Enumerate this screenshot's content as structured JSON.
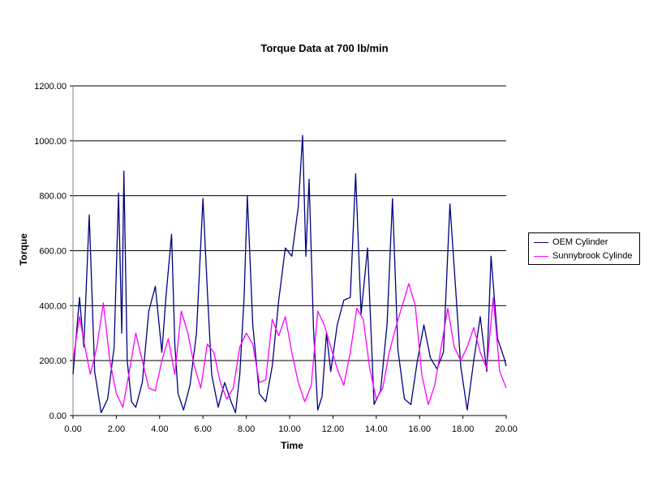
{
  "chart_data": {
    "type": "line",
    "title": "Torque Data at 700 lb/min",
    "xlabel": "Time",
    "ylabel": "Torque",
    "xlim": [
      0,
      20
    ],
    "ylim": [
      0,
      1200
    ],
    "x_ticks": [
      0,
      2,
      4,
      6,
      8,
      10,
      12,
      14,
      16,
      18,
      20
    ],
    "x_tick_labels": [
      "0.00",
      "2.00",
      "4.00",
      "6.00",
      "8.00",
      "10.00",
      "12.00",
      "14.00",
      "16.00",
      "18.00",
      "20.00"
    ],
    "y_ticks": [
      0,
      200,
      400,
      600,
      800,
      1000,
      1200
    ],
    "y_tick_labels": [
      "0.00",
      "200.00",
      "400.00",
      "600.00",
      "800.00",
      "1000.00",
      "1200.00"
    ],
    "grid": "horizontal",
    "legend_position": "right",
    "series": [
      {
        "name": "OEM Cylinder",
        "color": "#000080",
        "x": [
          0.0,
          0.3,
          0.5,
          0.75,
          1.0,
          1.3,
          1.6,
          1.9,
          2.1,
          2.25,
          2.35,
          2.5,
          2.7,
          2.9,
          3.2,
          3.5,
          3.8,
          4.1,
          4.3,
          4.55,
          4.7,
          4.85,
          5.1,
          5.4,
          5.7,
          6.0,
          6.2,
          6.4,
          6.7,
          7.0,
          7.3,
          7.5,
          7.7,
          7.9,
          8.05,
          8.3,
          8.6,
          8.9,
          9.2,
          9.5,
          9.8,
          10.1,
          10.4,
          10.6,
          10.75,
          10.9,
          11.1,
          11.3,
          11.5,
          11.7,
          11.9,
          12.2,
          12.5,
          12.8,
          13.05,
          13.3,
          13.6,
          13.9,
          14.2,
          14.5,
          14.75,
          15.0,
          15.3,
          15.6,
          15.9,
          16.2,
          16.5,
          16.8,
          17.1,
          17.4,
          17.7,
          17.9,
          18.2,
          18.5,
          18.8,
          19.1,
          19.3,
          19.6,
          19.9,
          20.0
        ],
        "y": [
          150,
          430,
          250,
          730,
          160,
          10,
          60,
          250,
          810,
          300,
          890,
          200,
          50,
          30,
          120,
          380,
          470,
          230,
          440,
          660,
          260,
          80,
          20,
          110,
          300,
          790,
          460,
          150,
          30,
          120,
          50,
          10,
          150,
          430,
          800,
          330,
          80,
          50,
          180,
          420,
          610,
          580,
          760,
          1020,
          580,
          860,
          320,
          20,
          70,
          300,
          160,
          330,
          420,
          430,
          880,
          370,
          610,
          40,
          90,
          330,
          790,
          240,
          60,
          40,
          200,
          330,
          210,
          170,
          230,
          770,
          420,
          180,
          20,
          200,
          360,
          160,
          580,
          280,
          210,
          180
        ]
      },
      {
        "name": "Sunnybrook Cylinde",
        "color": "#ff00ff",
        "x": [
          0.0,
          0.3,
          0.5,
          0.8,
          1.1,
          1.4,
          1.7,
          2.0,
          2.3,
          2.6,
          2.9,
          3.2,
          3.5,
          3.8,
          4.1,
          4.4,
          4.7,
          5.0,
          5.3,
          5.6,
          5.9,
          6.2,
          6.5,
          6.8,
          7.1,
          7.4,
          7.7,
          8.0,
          8.3,
          8.6,
          8.9,
          9.2,
          9.5,
          9.8,
          10.1,
          10.4,
          10.7,
          11.0,
          11.3,
          11.6,
          11.9,
          12.2,
          12.5,
          12.8,
          13.1,
          13.4,
          13.7,
          14.0,
          14.3,
          14.6,
          14.9,
          15.2,
          15.5,
          15.8,
          16.1,
          16.4,
          16.7,
          17.0,
          17.3,
          17.6,
          17.9,
          18.2,
          18.5,
          18.8,
          19.1,
          19.4,
          19.7,
          20.0
        ],
        "y": [
          200,
          360,
          270,
          150,
          250,
          410,
          200,
          80,
          30,
          160,
          300,
          200,
          100,
          90,
          200,
          280,
          150,
          380,
          300,
          180,
          100,
          260,
          230,
          120,
          60,
          100,
          250,
          300,
          260,
          120,
          130,
          350,
          290,
          360,
          230,
          120,
          50,
          110,
          380,
          330,
          250,
          170,
          110,
          230,
          390,
          350,
          170,
          60,
          100,
          230,
          320,
          400,
          480,
          400,
          150,
          40,
          110,
          250,
          390,
          250,
          200,
          250,
          320,
          230,
          170,
          430,
          160,
          100
        ]
      }
    ]
  }
}
